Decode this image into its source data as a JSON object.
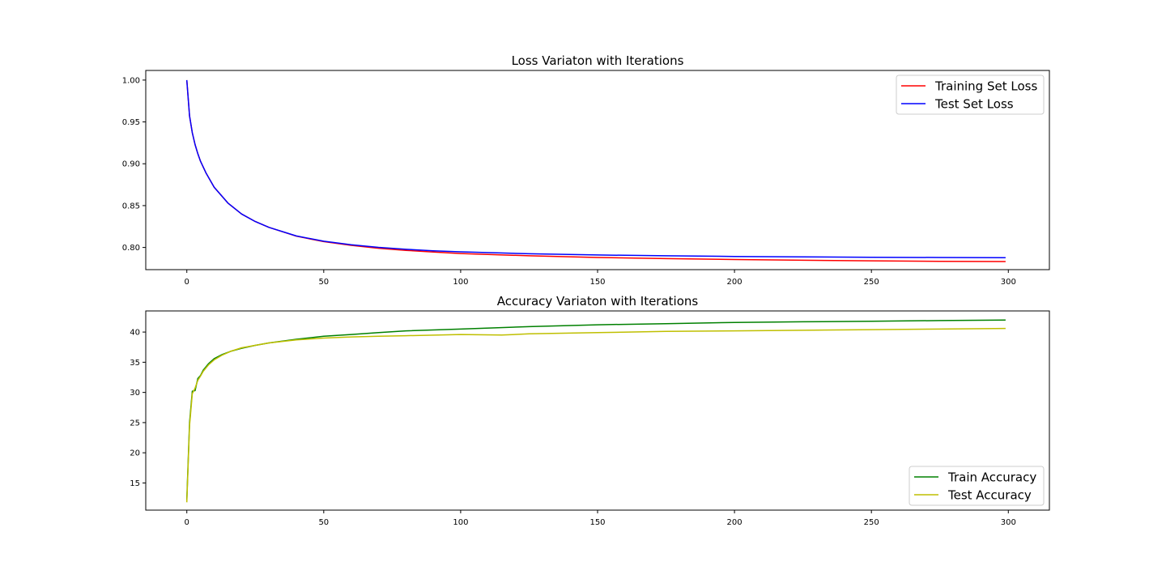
{
  "chart_data": [
    {
      "type": "line",
      "title": "Loss Variaton with Iterations",
      "xlabel": "",
      "ylabel": "",
      "xlim": [
        -15,
        315
      ],
      "ylim": [
        0.7735,
        1.0115
      ],
      "xticks": [
        0,
        50,
        100,
        150,
        200,
        250,
        300
      ],
      "yticks": [
        0.8,
        0.85,
        0.9,
        0.95,
        1.0
      ],
      "ytick_labels": [
        "0.80",
        "0.85",
        "0.90",
        "0.95",
        "1.00"
      ],
      "grid": false,
      "legend_position": "top-right",
      "series": [
        {
          "name": "Training Set Loss",
          "color": "#ff0000",
          "x": [
            0,
            1,
            2,
            3,
            4,
            5,
            7,
            10,
            15,
            20,
            25,
            30,
            40,
            50,
            60,
            70,
            80,
            90,
            100,
            125,
            150,
            175,
            200,
            225,
            250,
            275,
            299
          ],
          "y": [
            1.0,
            0.957,
            0.937,
            0.923,
            0.912,
            0.903,
            0.889,
            0.872,
            0.853,
            0.84,
            0.831,
            0.824,
            0.8135,
            0.807,
            0.8025,
            0.799,
            0.7965,
            0.7945,
            0.7928,
            0.79,
            0.788,
            0.7867,
            0.7856,
            0.7847,
            0.784,
            0.7835,
            0.7832
          ]
        },
        {
          "name": "Test Set Loss",
          "color": "#0000ff",
          "x": [
            0,
            1,
            2,
            3,
            4,
            5,
            7,
            10,
            15,
            20,
            25,
            30,
            40,
            50,
            60,
            70,
            80,
            90,
            100,
            125,
            150,
            175,
            200,
            225,
            250,
            275,
            299
          ],
          "y": [
            1.0,
            0.957,
            0.937,
            0.923,
            0.912,
            0.903,
            0.889,
            0.872,
            0.853,
            0.84,
            0.831,
            0.824,
            0.8137,
            0.8075,
            0.8032,
            0.8001,
            0.7978,
            0.796,
            0.7948,
            0.7925,
            0.791,
            0.79,
            0.7893,
            0.7887,
            0.7883,
            0.788,
            0.7878
          ]
        }
      ]
    },
    {
      "type": "line",
      "title": "Accuracy Variaton with Iterations",
      "xlabel": "",
      "ylabel": "",
      "xlim": [
        -15,
        315
      ],
      "ylim": [
        10.5,
        43.5
      ],
      "xticks": [
        0,
        50,
        100,
        150,
        200,
        250,
        300
      ],
      "yticks": [
        15,
        20,
        25,
        30,
        35,
        40
      ],
      "ytick_labels": [
        "15",
        "20",
        "25",
        "30",
        "35",
        "40"
      ],
      "grid": false,
      "legend_position": "bottom-right",
      "series": [
        {
          "name": "Train Accuracy",
          "color": "#008000",
          "x": [
            0,
            1,
            2,
            3,
            4,
            5,
            6,
            8,
            10,
            13,
            16,
            20,
            25,
            30,
            40,
            50,
            60,
            70,
            80,
            100,
            125,
            150,
            175,
            200,
            225,
            250,
            275,
            299
          ],
          "y": [
            12.2,
            25.0,
            30.2,
            30.3,
            32.3,
            32.8,
            33.7,
            34.8,
            35.6,
            36.3,
            36.8,
            37.3,
            37.8,
            38.2,
            38.8,
            39.3,
            39.6,
            39.9,
            40.2,
            40.5,
            40.9,
            41.2,
            41.4,
            41.6,
            41.7,
            41.8,
            41.9,
            42.0
          ]
        },
        {
          "name": "Test Accuracy",
          "color": "#bfbf00",
          "x": [
            0,
            1,
            2,
            3,
            4,
            5,
            6,
            8,
            10,
            13,
            16,
            20,
            25,
            30,
            40,
            50,
            60,
            70,
            80,
            100,
            115,
            125,
            150,
            175,
            200,
            225,
            250,
            275,
            299
          ],
          "y": [
            11.8,
            24.5,
            29.8,
            30.7,
            32.0,
            32.7,
            33.5,
            34.6,
            35.4,
            36.2,
            36.8,
            37.4,
            37.8,
            38.2,
            38.7,
            39.0,
            39.2,
            39.3,
            39.4,
            39.6,
            39.5,
            39.7,
            39.9,
            40.1,
            40.2,
            40.3,
            40.4,
            40.5,
            40.6
          ]
        }
      ]
    }
  ]
}
